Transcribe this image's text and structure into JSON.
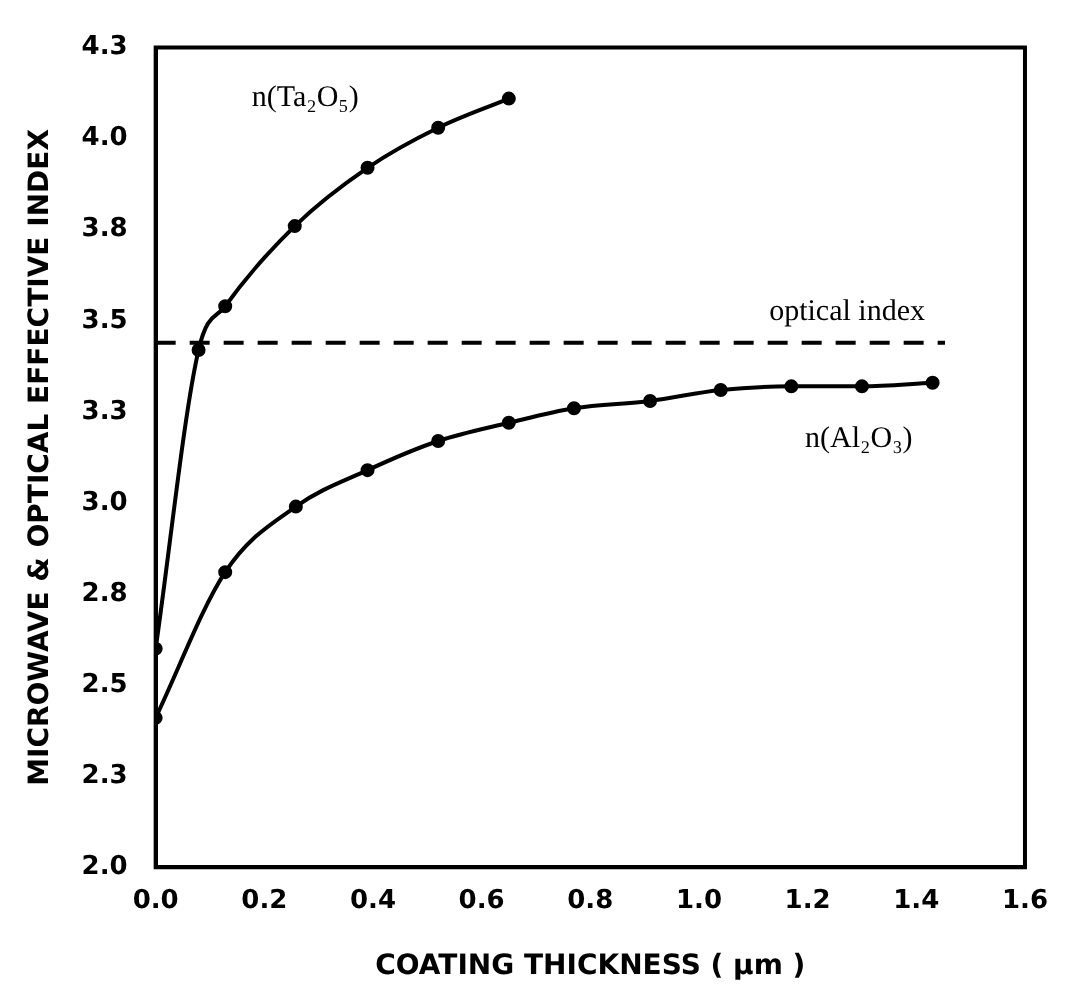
{
  "chart_data": {
    "type": "line",
    "xlabel": "COATING THICKNESS ( µm )",
    "ylabel": "MICROWAVE & OPTICAL EFFECTIVE INDEX",
    "series": [
      {
        "name": "n(Ta₂O₅)",
        "color": "#000000",
        "x": [
          0,
          0.079,
          0.128,
          0.256,
          0.39,
          0.52,
          0.65
        ],
        "values": [
          2.6,
          3.42,
          3.54,
          3.76,
          3.92,
          4.03,
          4.11
        ]
      },
      {
        "name": "n(Al₂O₃)",
        "color": "#000000",
        "x": [
          0,
          0.128,
          0.258,
          0.39,
          0.52,
          0.65,
          0.77,
          0.91,
          1.04,
          1.17,
          1.3,
          1.43
        ],
        "values": [
          2.41,
          2.81,
          2.99,
          3.09,
          3.17,
          3.22,
          3.26,
          3.28,
          3.31,
          3.32,
          3.32,
          3.33
        ]
      }
    ],
    "ref_lines": [
      {
        "axis": "y",
        "value": 3.44,
        "label": "optical index",
        "color": "#000000",
        "line_style": "dashed"
      }
    ],
    "xlim": [
      0,
      1.6
    ],
    "xticks": [
      {
        "value": 0,
        "label": "0.0"
      },
      {
        "value": 0.2,
        "label": "0.2"
      },
      {
        "value": 0.4,
        "label": "0.4"
      },
      {
        "value": 0.6,
        "label": "0.6"
      },
      {
        "value": 0.8,
        "label": "0.8"
      },
      {
        "value": 1.0,
        "label": "1.0"
      },
      {
        "value": 1.2,
        "label": "1.2"
      },
      {
        "value": 1.4,
        "label": "1.4"
      },
      {
        "value": 1.6,
        "label": "1.6"
      }
    ],
    "ylim": [
      2.0,
      4.25
    ],
    "yticks": [
      {
        "value": 2.0,
        "label": "2.0"
      },
      {
        "value": 2.25,
        "label": "2.3"
      },
      {
        "value": 2.5,
        "label": "2.5"
      },
      {
        "value": 2.75,
        "label": "2.8"
      },
      {
        "value": 3.0,
        "label": "3.0"
      },
      {
        "value": 3.25,
        "label": "3.3"
      },
      {
        "value": 3.5,
        "label": "3.5"
      },
      {
        "value": 3.75,
        "label": "3.8"
      },
      {
        "value": 4.0,
        "label": "4.0"
      },
      {
        "value": 4.25,
        "label": "4.3"
      }
    ],
    "grid": false,
    "legend": false,
    "marker": "circle",
    "line_style": "solid"
  }
}
